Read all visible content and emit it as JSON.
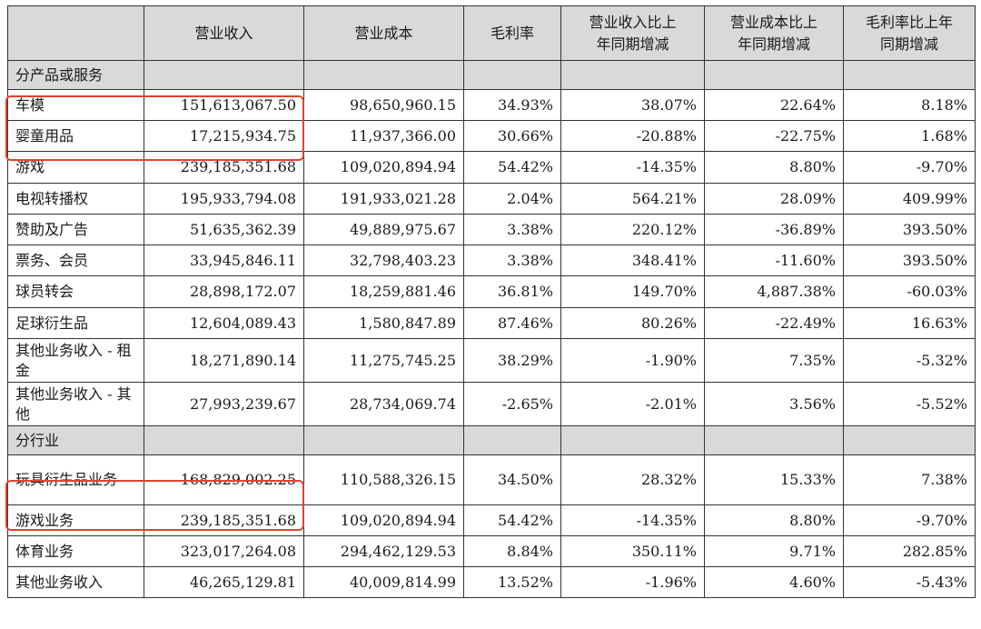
{
  "headers": [
    "",
    "营业收入",
    "营业成本",
    "毛利率",
    "营业收入比上年同期增减",
    "营业成本比上年同期增减",
    "毛利率比上年同期增减"
  ],
  "header_lines": {
    "c4": [
      "营业收入比上",
      "年同期增减"
    ],
    "c5": [
      "营业成本比上",
      "年同期增减"
    ],
    "c6": [
      "毛利率比上年",
      "同期增减"
    ]
  },
  "sections": [
    {
      "title": "分产品或服务",
      "rows": [
        [
          "车模",
          "151,613,067.50",
          "98,650,960.15",
          "34.93%",
          "38.07%",
          "22.64%",
          "8.18%"
        ],
        [
          "婴童用品",
          "17,215,934.75",
          "11,937,366.00",
          "30.66%",
          "-20.88%",
          "-22.75%",
          "1.68%"
        ],
        [
          "游戏",
          "239,185,351.68",
          "109,020,894.94",
          "54.42%",
          "-14.35%",
          "8.80%",
          "-9.70%"
        ],
        [
          "电视转播权",
          "195,933,794.08",
          "191,933,021.28",
          "2.04%",
          "564.21%",
          "28.09%",
          "409.99%"
        ],
        [
          "赞助及广告",
          "51,635,362.39",
          "49,889,975.67",
          "3.38%",
          "220.12%",
          "-36.89%",
          "393.50%"
        ],
        [
          "票务、会员",
          "33,945,846.11",
          "32,798,403.23",
          "3.38%",
          "348.41%",
          "-11.60%",
          "393.50%"
        ],
        [
          "球员转会",
          "28,898,172.07",
          "18,259,881.46",
          "36.81%",
          "149.70%",
          "4,887.38%",
          "-60.03%"
        ],
        [
          "足球衍生品",
          "12,604,089.43",
          "1,580,847.89",
          "87.46%",
          "80.26%",
          "-22.49%",
          "16.63%"
        ],
        [
          "其他业务收入 - 租金",
          "18,271,890.14",
          "11,275,745.25",
          "38.29%",
          "-1.90%",
          "7.35%",
          "-5.32%"
        ],
        [
          "其他业务收入 - 其他",
          "27,993,239.67",
          "28,734,069.74",
          "-2.65%",
          "-2.01%",
          "3.56%",
          "-5.52%"
        ]
      ]
    },
    {
      "title": "分行业",
      "rows": [
        [
          "玩具衍生品业务",
          "168,829,002.25",
          "110,588,326.15",
          "34.50%",
          "28.32%",
          "15.33%",
          "7.38%"
        ],
        [
          "游戏业务",
          "239,185,351.68",
          "109,020,894.94",
          "54.42%",
          "-14.35%",
          "8.80%",
          "-9.70%"
        ],
        [
          "体育业务",
          "323,017,264.08",
          "294,462,129.53",
          "8.84%",
          "350.11%",
          "9.71%",
          "282.85%"
        ],
        [
          "其他业务收入",
          "46,265,129.81",
          "40,009,814.99",
          "13.52%",
          "-1.96%",
          "4.60%",
          "-5.43%"
        ]
      ]
    }
  ],
  "highlight_color": "#e0442c"
}
